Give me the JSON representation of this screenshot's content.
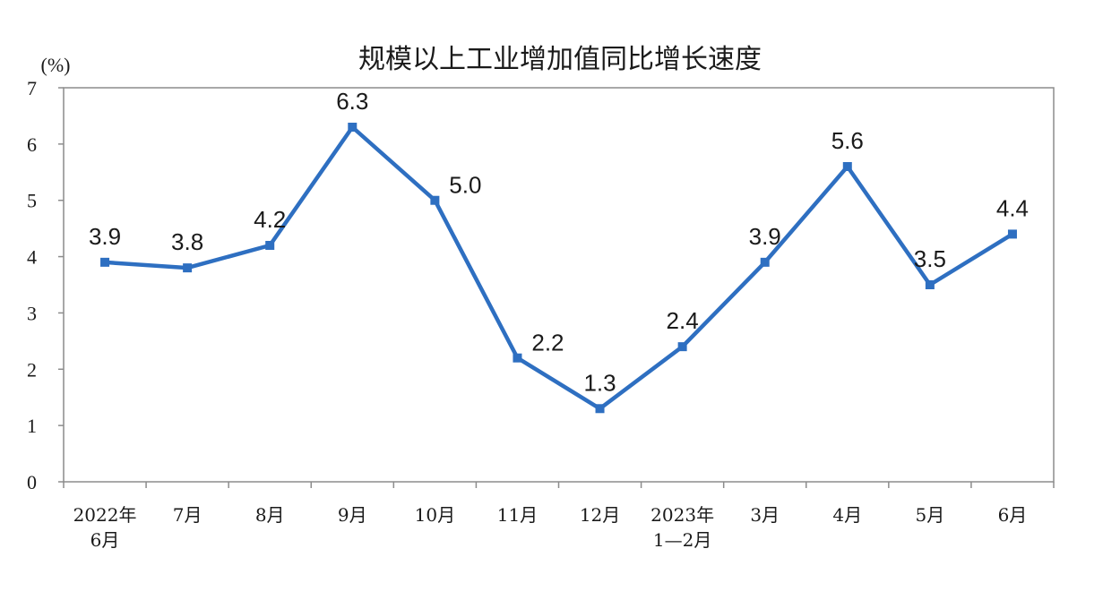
{
  "chart_data": {
    "type": "line",
    "title": "规模以上工业增加值同比增长速度",
    "unit_label": "(%)",
    "categories": [
      [
        "2022年",
        "6月"
      ],
      [
        "7月"
      ],
      [
        "8月"
      ],
      [
        "9月"
      ],
      [
        "10月"
      ],
      [
        "11月"
      ],
      [
        "12月"
      ],
      [
        "2023年",
        "1—2月"
      ],
      [
        "3月"
      ],
      [
        "4月"
      ],
      [
        "5月"
      ],
      [
        "6月"
      ]
    ],
    "values": [
      3.9,
      3.8,
      4.2,
      6.3,
      5.0,
      2.2,
      1.3,
      2.4,
      3.9,
      5.6,
      3.5,
      4.4
    ],
    "data_labels": [
      "3.9",
      "3.8",
      "4.2",
      "6.3",
      "5.0",
      "2.2",
      "1.3",
      "2.4",
      "3.9",
      "5.6",
      "3.5",
      "4.4"
    ],
    "ylim": [
      0,
      7
    ],
    "yticks": [
      "0",
      "1",
      "2",
      "3",
      "4",
      "5",
      "6",
      "7"
    ],
    "grid": false,
    "colors": {
      "series": "#2e6fc1",
      "axis": "#8c8c8c",
      "text": "#1a1a1a"
    }
  }
}
